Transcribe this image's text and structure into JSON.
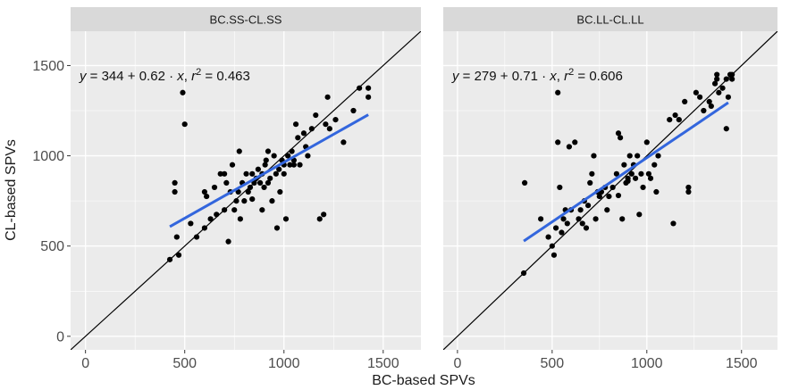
{
  "chart_data": {
    "type": "scatter",
    "xlabel": "BC-based SPVs",
    "ylabel": "CL-based SPVs",
    "xlim": [
      -75,
      1690
    ],
    "ylim": [
      -75,
      1690
    ],
    "x_ticks": [
      0,
      500,
      1000,
      1500
    ],
    "y_ticks": [
      0,
      500,
      1000,
      1500
    ],
    "grid": true,
    "colors": {
      "panel_bg": "#ebebeb",
      "strip_bg": "#d9d9d9",
      "grid": "#ffffff",
      "points": "#000000",
      "identity_line": "#000000",
      "fit_line": "#3366dd"
    },
    "panels": [
      {
        "strip": "BC.SS-CL.SS",
        "annotation": {
          "y": "y",
          "rhs": "= 344 + 0.62 · ",
          "x": "x",
          "sep": ",  ",
          "r": "r",
          "exp": "2",
          "r2": " = 0.463"
        },
        "fit": {
          "intercept": 344,
          "slope": 0.62,
          "x_range": [
            425,
            1425
          ]
        },
        "points": [
          [
            425,
            425
          ],
          [
            450,
            850
          ],
          [
            450,
            800
          ],
          [
            470,
            450
          ],
          [
            490,
            1350
          ],
          [
            500,
            1175
          ],
          [
            460,
            550
          ],
          [
            530,
            625
          ],
          [
            560,
            550
          ],
          [
            600,
            600
          ],
          [
            600,
            800
          ],
          [
            610,
            775
          ],
          [
            650,
            825
          ],
          [
            630,
            650
          ],
          [
            660,
            675
          ],
          [
            680,
            900
          ],
          [
            700,
            700
          ],
          [
            700,
            900
          ],
          [
            710,
            850
          ],
          [
            720,
            525
          ],
          [
            730,
            800
          ],
          [
            740,
            950
          ],
          [
            750,
            700
          ],
          [
            760,
            750
          ],
          [
            770,
            800
          ],
          [
            775,
            1025
          ],
          [
            790,
            850
          ],
          [
            800,
            750
          ],
          [
            810,
            900
          ],
          [
            820,
            800
          ],
          [
            830,
            825
          ],
          [
            840,
            900
          ],
          [
            850,
            850
          ],
          [
            860,
            875
          ],
          [
            870,
            925
          ],
          [
            880,
            850
          ],
          [
            890,
            900
          ],
          [
            900,
            825
          ],
          [
            905,
            950
          ],
          [
            910,
            975
          ],
          [
            920,
            1025
          ],
          [
            930,
            875
          ],
          [
            940,
            750
          ],
          [
            950,
            1000
          ],
          [
            960,
            900
          ],
          [
            965,
            600
          ],
          [
            975,
            925
          ],
          [
            980,
            800
          ],
          [
            990,
            975
          ],
          [
            1000,
            950
          ],
          [
            1010,
            650
          ],
          [
            1020,
            1000
          ],
          [
            1030,
            950
          ],
          [
            1040,
            1025
          ],
          [
            1050,
            975
          ],
          [
            1060,
            1175
          ],
          [
            1070,
            1100
          ],
          [
            1080,
            950
          ],
          [
            1100,
            1125
          ],
          [
            1110,
            1050
          ],
          [
            1120,
            1000
          ],
          [
            1140,
            1150
          ],
          [
            1160,
            1225
          ],
          [
            1180,
            650
          ],
          [
            1200,
            675
          ],
          [
            1210,
            1175
          ],
          [
            1220,
            1325
          ],
          [
            1230,
            1150
          ],
          [
            1260,
            1200
          ],
          [
            1300,
            1075
          ],
          [
            1350,
            1250
          ],
          [
            1380,
            1375
          ],
          [
            1425,
            1375
          ],
          [
            1425,
            1325
          ],
          [
            890,
            700
          ],
          [
            780,
            650
          ],
          [
            840,
            760
          ],
          [
            920,
            850
          ],
          [
            1000,
            900
          ],
          [
            1050,
            950
          ]
        ]
      },
      {
        "strip": "BC.LL-CL.LL",
        "annotation": {
          "y": "y",
          "rhs": "= 279 + 0.71 · ",
          "x": "x",
          "sep": ",  ",
          "r": "r",
          "exp": "2",
          "r2": " = 0.606"
        },
        "fit": {
          "intercept": 279,
          "slope": 0.71,
          "x_range": [
            350,
            1430
          ]
        },
        "points": [
          [
            350,
            350
          ],
          [
            355,
            850
          ],
          [
            440,
            650
          ],
          [
            480,
            550
          ],
          [
            500,
            500
          ],
          [
            510,
            450
          ],
          [
            520,
            600
          ],
          [
            530,
            1350
          ],
          [
            530,
            1075
          ],
          [
            540,
            825
          ],
          [
            550,
            575
          ],
          [
            560,
            650
          ],
          [
            570,
            700
          ],
          [
            580,
            625
          ],
          [
            590,
            1050
          ],
          [
            600,
            700
          ],
          [
            620,
            1075
          ],
          [
            640,
            650
          ],
          [
            660,
            625
          ],
          [
            670,
            750
          ],
          [
            680,
            600
          ],
          [
            690,
            725
          ],
          [
            700,
            850
          ],
          [
            710,
            900
          ],
          [
            720,
            1000
          ],
          [
            730,
            650
          ],
          [
            740,
            800
          ],
          [
            750,
            775
          ],
          [
            760,
            800
          ],
          [
            780,
            825
          ],
          [
            800,
            775
          ],
          [
            820,
            825
          ],
          [
            840,
            900
          ],
          [
            850,
            1125
          ],
          [
            860,
            1100
          ],
          [
            870,
            650
          ],
          [
            880,
            950
          ],
          [
            890,
            850
          ],
          [
            900,
            875
          ],
          [
            910,
            1000
          ],
          [
            920,
            900
          ],
          [
            930,
            950
          ],
          [
            940,
            875
          ],
          [
            950,
            1000
          ],
          [
            960,
            675
          ],
          [
            970,
            900
          ],
          [
            980,
            825
          ],
          [
            1000,
            1075
          ],
          [
            1010,
            900
          ],
          [
            1020,
            875
          ],
          [
            1040,
            950
          ],
          [
            1050,
            800
          ],
          [
            1060,
            1000
          ],
          [
            1120,
            1200
          ],
          [
            1140,
            625
          ],
          [
            1150,
            1225
          ],
          [
            1170,
            1200
          ],
          [
            1200,
            1300
          ],
          [
            1220,
            800
          ],
          [
            1220,
            825
          ],
          [
            1260,
            1350
          ],
          [
            1280,
            1325
          ],
          [
            1300,
            1250
          ],
          [
            1330,
            1300
          ],
          [
            1340,
            1275
          ],
          [
            1360,
            1400
          ],
          [
            1370,
            1425
          ],
          [
            1380,
            1350
          ],
          [
            1400,
            1375
          ],
          [
            1420,
            1425
          ],
          [
            1420,
            1150
          ],
          [
            1430,
            1325
          ],
          [
            1440,
            1450
          ],
          [
            1450,
            1425
          ],
          [
            1450,
            1450
          ],
          [
            1370,
            1450
          ],
          [
            790,
            700
          ],
          [
            850,
            780
          ],
          [
            900,
            860
          ],
          [
            650,
            700
          ]
        ]
      }
    ]
  }
}
